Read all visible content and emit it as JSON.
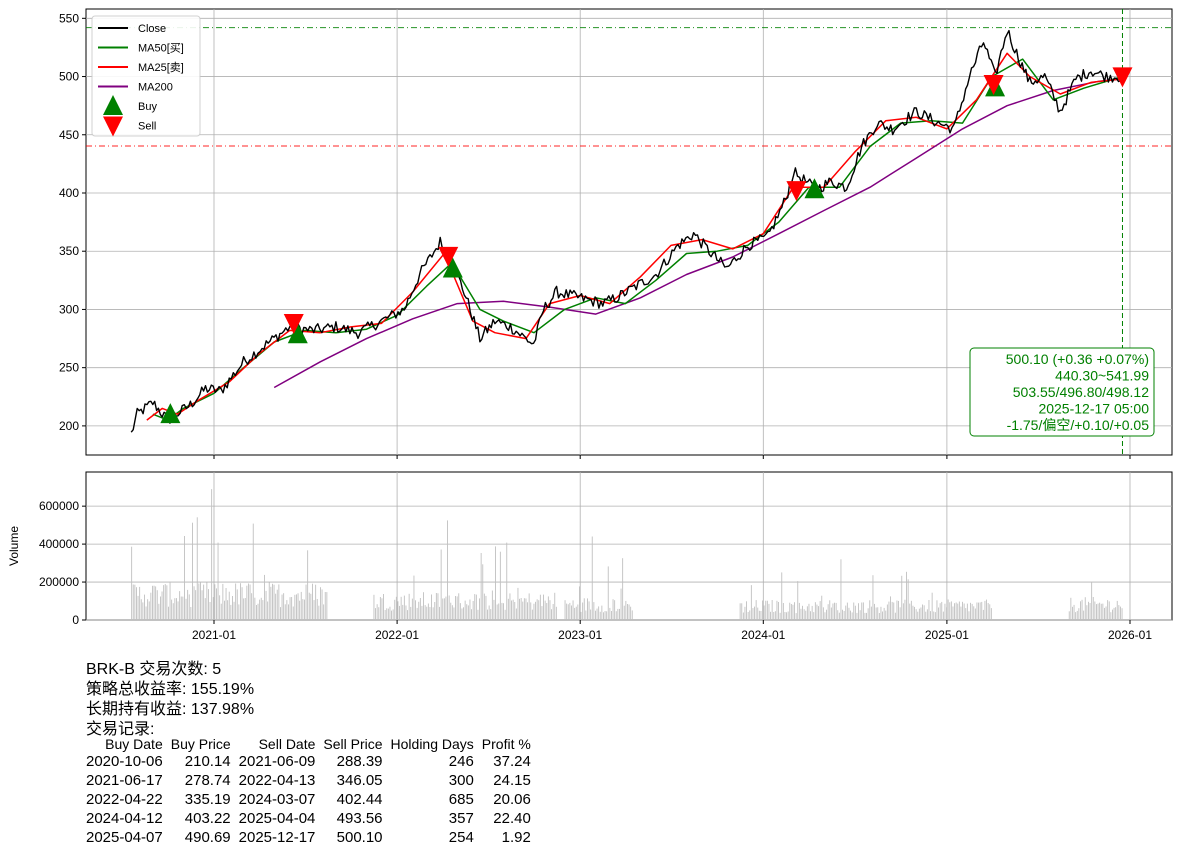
{
  "chart_data": [
    {
      "type": "line",
      "ylim": [
        175,
        558
      ],
      "y_ticks": [
        200,
        250,
        300,
        350,
        400,
        450,
        500,
        550
      ],
      "x_ticks": [
        "2021-01",
        "2022-01",
        "2023-01",
        "2024-01",
        "2025-01",
        "2026-01"
      ],
      "grid": true,
      "legend_position": "top-left",
      "legend": [
        "Close",
        "MA50[买]",
        "MA25[卖]",
        "MA200",
        "Buy",
        "Sell"
      ],
      "series": [
        {
          "name": "Close",
          "color": "#000000",
          "x": [
            "2020-07-20",
            "2020-08-01",
            "2020-09-01",
            "2020-10-01",
            "2020-11-15",
            "2020-12-15",
            "2021-01-15",
            "2021-03-01",
            "2021-04-15",
            "2021-06-01",
            "2021-07-15",
            "2021-09-01",
            "2021-10-15",
            "2021-12-01",
            "2022-01-15",
            "2022-02-15",
            "2022-03-28",
            "2022-04-15",
            "2022-05-15",
            "2022-06-15",
            "2022-07-15",
            "2022-08-15",
            "2022-09-30",
            "2022-10-20",
            "2022-11-15",
            "2022-12-31",
            "2023-02-15",
            "2023-03-15",
            "2023-04-15",
            "2023-06-01",
            "2023-07-15",
            "2023-08-15",
            "2023-09-15",
            "2023-10-20",
            "2023-12-01",
            "2024-01-10",
            "2024-02-15",
            "2024-03-01",
            "2024-04-15",
            "2024-05-15",
            "2024-06-15",
            "2024-07-15",
            "2024-08-15",
            "2024-09-15",
            "2024-11-01",
            "2024-12-15",
            "2025-01-15",
            "2025-02-15",
            "2025-03-15",
            "2025-04-07",
            "2025-05-01",
            "2025-05-20",
            "2025-06-15",
            "2025-07-15",
            "2025-08-15",
            "2025-09-15",
            "2025-10-15",
            "2025-11-15",
            "2025-12-17"
          ],
          "y": [
            193,
            210,
            220,
            205,
            218,
            232,
            230,
            255,
            270,
            285,
            282,
            285,
            280,
            290,
            300,
            330,
            358,
            345,
            315,
            275,
            290,
            285,
            270,
            300,
            315,
            310,
            305,
            310,
            318,
            330,
            355,
            365,
            350,
            335,
            355,
            362,
            395,
            418,
            403,
            410,
            405,
            440,
            460,
            455,
            470,
            460,
            455,
            500,
            530,
            500,
            540,
            520,
            495,
            500,
            470,
            498,
            505,
            500,
            500.1
          ]
        },
        {
          "name": "MA50[买]",
          "color": "#008000",
          "x": [
            "2020-09-01",
            "2020-10-01",
            "2020-11-01",
            "2021-01-01",
            "2021-03-01",
            "2021-05-01",
            "2021-07-01",
            "2021-09-01",
            "2021-11-01",
            "2022-01-01",
            "2022-03-01",
            "2022-04-20",
            "2022-06-15",
            "2022-08-01",
            "2022-10-01",
            "2022-12-01",
            "2023-02-01",
            "2023-04-01",
            "2023-06-01",
            "2023-08-01",
            "2023-10-01",
            "2023-12-01",
            "2024-02-01",
            "2024-04-01",
            "2024-06-01",
            "2024-08-01",
            "2024-10-01",
            "2024-12-01",
            "2025-02-01",
            "2025-04-01",
            "2025-06-01",
            "2025-08-01",
            "2025-10-01",
            "2025-12-17"
          ],
          "y": [
            210,
            205,
            215,
            228,
            250,
            272,
            282,
            280,
            283,
            295,
            320,
            340,
            300,
            290,
            280,
            300,
            310,
            305,
            325,
            348,
            350,
            355,
            375,
            405,
            405,
            440,
            460,
            462,
            460,
            500,
            515,
            480,
            490,
            500
          ]
        },
        {
          "name": "MA25[卖]",
          "color": "#ff0000",
          "x": [
            "2020-08-20",
            "2020-09-20",
            "2020-10-20",
            "2020-12-01",
            "2021-02-01",
            "2021-04-01",
            "2021-06-01",
            "2021-08-01",
            "2021-10-01",
            "2021-12-01",
            "2022-02-01",
            "2022-04-05",
            "2022-06-01",
            "2022-07-15",
            "2022-09-15",
            "2022-11-01",
            "2023-01-01",
            "2023-03-01",
            "2023-05-01",
            "2023-07-01",
            "2023-09-01",
            "2023-11-01",
            "2024-01-01",
            "2024-03-01",
            "2024-05-01",
            "2024-07-01",
            "2024-09-01",
            "2024-11-01",
            "2025-01-01",
            "2025-03-01",
            "2025-05-01",
            "2025-06-15",
            "2025-08-15",
            "2025-10-15",
            "2025-12-17"
          ],
          "y": [
            205,
            215,
            210,
            222,
            238,
            262,
            282,
            280,
            285,
            288,
            315,
            348,
            290,
            280,
            275,
            305,
            312,
            305,
            328,
            355,
            360,
            352,
            365,
            405,
            405,
            435,
            462,
            465,
            455,
            480,
            520,
            500,
            485,
            495,
            498
          ]
        },
        {
          "name": "MA200",
          "color": "#800080",
          "x": [
            "2021-05-01",
            "2021-08-01",
            "2021-11-01",
            "2022-02-01",
            "2022-05-01",
            "2022-08-01",
            "2022-11-01",
            "2023-02-01",
            "2023-05-01",
            "2023-08-01",
            "2023-11-01",
            "2024-02-01",
            "2024-05-01",
            "2024-08-01",
            "2024-11-01",
            "2025-02-01",
            "2025-05-01",
            "2025-08-01",
            "2025-11-01",
            "2025-12-17"
          ],
          "y": [
            233,
            255,
            275,
            292,
            305,
            307,
            302,
            296,
            310,
            330,
            345,
            365,
            385,
            405,
            430,
            455,
            475,
            488,
            496,
            498
          ]
        },
        {
          "name": "Buy",
          "marker": "triangle-up",
          "color": "#008000",
          "x": [
            "2020-10-06",
            "2021-06-17",
            "2022-04-22",
            "2024-04-12",
            "2025-04-07"
          ],
          "y": [
            210.14,
            278.74,
            335.19,
            403.22,
            490.69
          ]
        },
        {
          "name": "Sell",
          "marker": "triangle-down",
          "color": "#ff0000",
          "x": [
            "2021-06-09",
            "2022-04-13",
            "2024-03-07",
            "2025-04-04",
            "2025-12-17"
          ],
          "y": [
            288.39,
            346.05,
            402.44,
            493.56,
            500.1
          ]
        }
      ],
      "hlines": [
        {
          "y": 541.99,
          "color": "#008000"
        },
        {
          "y": 440.3,
          "color": "#ff0000"
        }
      ],
      "vline": {
        "x": "2025-12-17",
        "color": "#008000"
      },
      "info_box": [
        "500.10 (+0.36 +0.07%)",
        "440.30~541.99",
        "503.55/496.80/498.12",
        "2025-12-17 05:00",
        "-1.75/偏空/+0.10/+0.05"
      ]
    },
    {
      "type": "bar",
      "ylabel": "Volume",
      "ylim": [
        0,
        780000
      ],
      "y_ticks": [
        0,
        200000,
        400000,
        600000
      ],
      "y_tick_labels": [
        "0",
        "200000",
        "400000",
        "600000"
      ],
      "color": "#c0c0c0",
      "segments": [
        {
          "from": "2020-07-20",
          "to": "2021-08-15",
          "base": 150000,
          "peak": 690000
        },
        {
          "from": "2021-11-15",
          "to": "2022-11-15",
          "base": 110000,
          "peak": 525000
        },
        {
          "from": "2022-12-01",
          "to": "2023-04-15",
          "base": 90000,
          "peak": 440000
        },
        {
          "from": "2023-11-15",
          "to": "2025-03-31",
          "base": 80000,
          "peak": 320000
        },
        {
          "from": "2025-09-01",
          "to": "2025-12-17",
          "base": 90000,
          "peak": 200000
        }
      ]
    }
  ],
  "stats": {
    "line1": "BRK-B 交易次数: 5",
    "line2": "策略总收益率: 155.19%",
    "line3": "长期持有收益: 137.98%",
    "line4": "交易记录:"
  },
  "trades": {
    "headers": [
      "Buy Date",
      "Buy Price",
      "Sell Date",
      "Sell Price",
      "Holding Days",
      "Profit %"
    ],
    "rows": [
      [
        "2020-10-06",
        "210.14",
        "2021-06-09",
        "288.39",
        "246",
        "37.24"
      ],
      [
        "2021-06-17",
        "278.74",
        "2022-04-13",
        "346.05",
        "300",
        "24.15"
      ],
      [
        "2022-04-22",
        "335.19",
        "2024-03-07",
        "402.44",
        "685",
        "20.06"
      ],
      [
        "2024-04-12",
        "403.22",
        "2025-04-04",
        "493.56",
        "357",
        "22.40"
      ],
      [
        "2025-04-07",
        "490.69",
        "2025-12-17",
        "500.10",
        "254",
        "1.92"
      ]
    ]
  }
}
